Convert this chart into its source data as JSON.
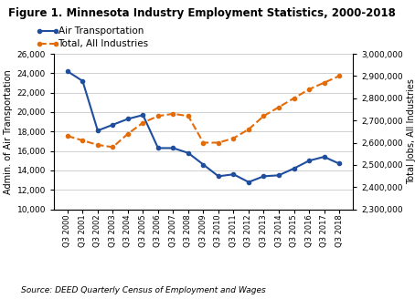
{
  "title": "Figure 1. Minnesota Industry Employment Statistics, 2000-2018",
  "source_text": "Source: DEED Quarterly Census of Employment and Wages",
  "ylabel_left": "Admin. of Air Transportation",
  "ylabel_right": "Total Jobs, All Industries",
  "categories": [
    "Q3 2000",
    "Q3 2001",
    "Q3 2002",
    "Q3 2003",
    "Q3 2004",
    "Q3 2005",
    "Q3 2006",
    "Q3 2007",
    "Q3 2008",
    "Q3 2009",
    "Q3 2010",
    "Q3 2011",
    "Q3 2012",
    "Q3 2013",
    "Q3 2014",
    "Q3 2015",
    "Q3 2016",
    "Q3 2017",
    "Q3 2018"
  ],
  "air_transport": [
    24200,
    23200,
    18100,
    18700,
    19300,
    19700,
    16300,
    16300,
    15800,
    14600,
    13400,
    13600,
    12800,
    13400,
    13500,
    14200,
    15000,
    15400,
    14700
  ],
  "total_industries": [
    2630000,
    2610000,
    2590000,
    2580000,
    2640000,
    2690000,
    2720000,
    2730000,
    2720000,
    2600000,
    2600000,
    2620000,
    2660000,
    2720000,
    2760000,
    2800000,
    2840000,
    2870000,
    2900000
  ],
  "air_color": "#1f4e9e",
  "total_color": "#e36c09",
  "ylim_left": [
    10000,
    26000
  ],
  "ylim_right": [
    2300000,
    3000000
  ],
  "yticks_left": [
    10000,
    12000,
    14000,
    16000,
    18000,
    20000,
    22000,
    24000,
    26000
  ],
  "yticks_right": [
    2300000,
    2400000,
    2500000,
    2600000,
    2700000,
    2800000,
    2900000,
    3000000
  ],
  "bg_color": "#ffffff",
  "grid_color": "#c8c8c8",
  "legend_labels": [
    "Air Transportation",
    "Total, All Industries"
  ]
}
